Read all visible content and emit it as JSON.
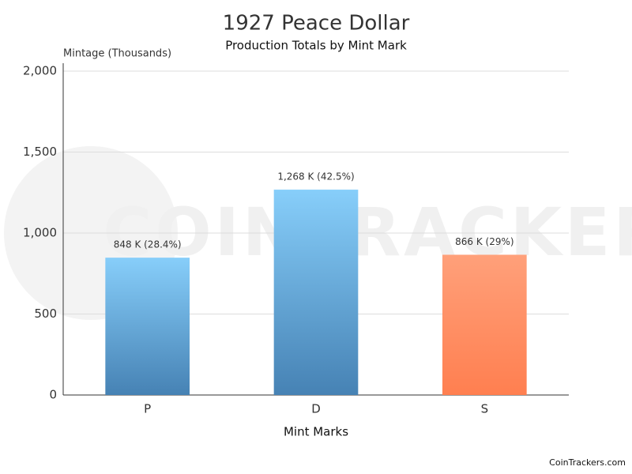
{
  "chart_data": {
    "type": "bar",
    "title": "1927 Peace Dollar",
    "subtitle": "Production Totals by Mint Mark",
    "y_label": "Mintage (Thousands)",
    "x_label": "Mint Marks",
    "categories": [
      "P",
      "D",
      "S"
    ],
    "values": [
      848,
      1268,
      866
    ],
    "value_labels": [
      "848 K (28.4%)",
      "1,268 K (42.5%)",
      "866 K (29%)"
    ],
    "colors": [
      [
        "#87cefa",
        "#4682b4"
      ],
      [
        "#87cefa",
        "#4682b4"
      ],
      [
        "#ffa07a",
        "#ff7f50"
      ]
    ],
    "ylim": [
      0,
      2000
    ],
    "yticks": [
      0,
      500,
      {
        "value": 1000,
        "label": "1,000"
      },
      {
        "value": 1500,
        "label": "1,500"
      },
      {
        "value": 2000,
        "label": "2,000"
      }
    ],
    "grid": true,
    "watermark": "COINTRACKERS",
    "credit": "CoinTrackers.com"
  }
}
